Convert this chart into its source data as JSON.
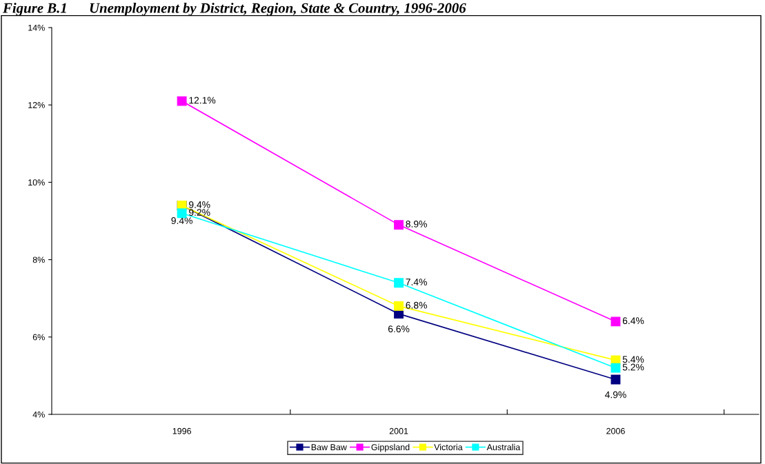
{
  "chart_data": {
    "type": "line",
    "title": "Figure B.1      Unemployment by District, Region, State & Country, 1996-2006",
    "categories": [
      "1996",
      "2001",
      "2006"
    ],
    "series": [
      {
        "name": "Baw Baw",
        "color": "#000080",
        "values": [
          9.4,
          6.6,
          4.9
        ],
        "value_labels": [
          "9.4%",
          "6.6%",
          "4.9%"
        ]
      },
      {
        "name": "Gippsland",
        "color": "#ff00ff",
        "values": [
          12.1,
          8.9,
          6.4
        ],
        "value_labels": [
          "12.1%",
          "8.9%",
          "6.4%"
        ]
      },
      {
        "name": "Victoria",
        "color": "#ffff00",
        "values": [
          9.4,
          6.8,
          5.4
        ],
        "value_labels": [
          "9.4%",
          "6.8%",
          "5.4%"
        ]
      },
      {
        "name": "Australia",
        "color": "#00ffff",
        "values": [
          9.2,
          7.4,
          5.2
        ],
        "value_labels": [
          "9.2%",
          "7.4%",
          "5.2%"
        ]
      }
    ],
    "ylim": [
      4,
      14
    ],
    "yticks": [
      {
        "value": 4,
        "label": "4%"
      },
      {
        "value": 6,
        "label": "6%"
      },
      {
        "value": 8,
        "label": "8%"
      },
      {
        "value": 10,
        "label": "10%"
      },
      {
        "value": 12,
        "label": "12%"
      },
      {
        "value": 14,
        "label": "14%"
      }
    ],
    "grid": false,
    "legend": "bottom",
    "marker": "square",
    "line_style": "solid"
  }
}
